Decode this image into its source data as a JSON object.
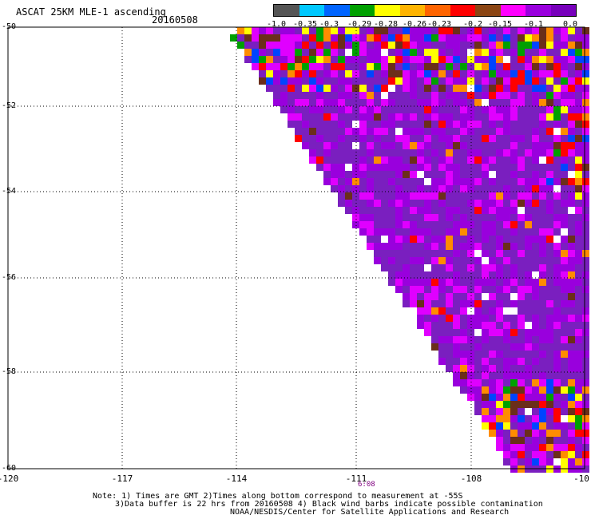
{
  "header": {
    "title": "ASCAT 25KM MLE-1 ascending",
    "date": "20160508"
  },
  "colorbar": {
    "colors": [
      "#555555",
      "#00c8ff",
      "#0064ff",
      "#00a000",
      "#ffff00",
      "#ffb400",
      "#ff6400",
      "#ff0000",
      "#8b4513",
      "#ff00ff",
      "#9900dd",
      "#7700bb"
    ],
    "labels": [
      "-1.0",
      "-0.35",
      "-0.3",
      "-0.29",
      "-0.28",
      "-0.26",
      "-0.23",
      "-0.2",
      "-0.15",
      "-0.1",
      "0.0"
    ]
  },
  "map": {
    "lat_labels": [
      "-50",
      "-52",
      "-54",
      "-56",
      "-58",
      "-60"
    ],
    "lon_labels": [
      "-120",
      "-117",
      "-114",
      "-111",
      "-108",
      "-10"
    ],
    "time_label": "6:08",
    "colors": {
      "purple_dark": "#7a1fbf",
      "purple": "#9900dd",
      "magenta": "#e000ff",
      "brown": "#6b2e1a",
      "red": "#ff0000",
      "orange": "#ff8c00",
      "yellow": "#ffff00",
      "blue": "#0044ff",
      "green": "#00a000"
    }
  },
  "footer": {
    "line1": "Note: 1) Times are GMT 2)Times along bottom correspond to measurement at -55S",
    "line2": "3)Data buffer is 22 hrs from 20160508 4) Black wind barbs indicate possible contamination",
    "line3": "NOAA/NESDIS/Center for Satellite Applications and Research"
  }
}
